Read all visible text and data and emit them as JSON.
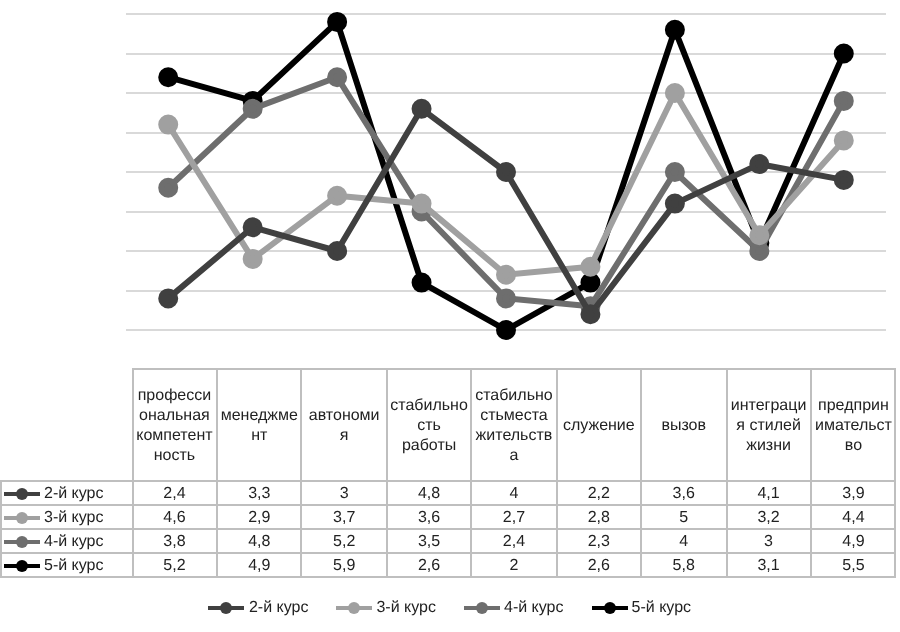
{
  "chart_data": {
    "type": "line",
    "categories": [
      "профессиональная компетентность",
      "менеджмент",
      "автономия",
      "стабильность работы",
      "стабильностьместа жительства",
      "служение",
      "вызов",
      "интеграция стилей жизни",
      "предпринимательство"
    ],
    "series": [
      {
        "name": "2-й курс",
        "color": "#404040",
        "values": [
          2.4,
          3.3,
          3,
          4.8,
          4,
          2.2,
          3.6,
          4.1,
          3.9
        ],
        "value_labels": [
          "2,4",
          "3,3",
          "3",
          "4,8",
          "4",
          "2,2",
          "3,6",
          "4,1",
          "3,9"
        ]
      },
      {
        "name": "3-й курс",
        "color": "#a0a0a0",
        "values": [
          4.6,
          2.9,
          3.7,
          3.6,
          2.7,
          2.8,
          5,
          3.2,
          4.4
        ],
        "value_labels": [
          "4,6",
          "2,9",
          "3,7",
          "3,6",
          "2,7",
          "2,8",
          "5",
          "3,2",
          "4,4"
        ]
      },
      {
        "name": "4-й курс",
        "color": "#6e6e6e",
        "values": [
          3.8,
          4.8,
          5.2,
          3.5,
          2.4,
          2.3,
          4,
          3,
          4.9
        ],
        "value_labels": [
          "3,8",
          "4,8",
          "5,2",
          "3,5",
          "2,4",
          "2,3",
          "4",
          "3",
          "4,9"
        ]
      },
      {
        "name": "5-й курс",
        "color": "#000000",
        "values": [
          5.2,
          4.9,
          5.9,
          2.6,
          2,
          2.6,
          5.8,
          3.1,
          5.5
        ],
        "value_labels": [
          "5,2",
          "4,9",
          "5,9",
          "2,6",
          "2",
          "2,6",
          "5,8",
          "3,1",
          "5,5"
        ]
      }
    ],
    "tick_labels": "x",
    "grid": "y",
    "marker": "circle",
    "line_style": "solid",
    "legend": "bottom"
  }
}
